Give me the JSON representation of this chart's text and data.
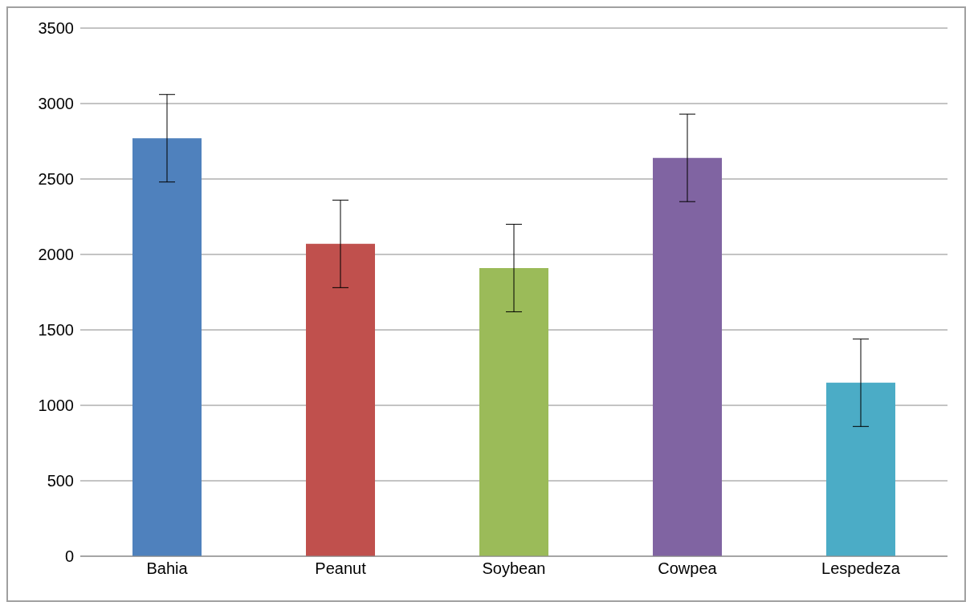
{
  "chart_data": {
    "type": "bar",
    "categories": [
      "Bahia",
      "Peanut",
      "Soybean",
      "Cowpea",
      "Lespedeza"
    ],
    "values": [
      2770,
      2070,
      1910,
      2640,
      1150
    ],
    "errors": [
      290,
      290,
      290,
      290,
      290
    ],
    "colors": [
      "#4f81bd",
      "#c0504d",
      "#9bbb59",
      "#8064a2",
      "#4bacc6"
    ],
    "ylim": [
      0,
      3500
    ],
    "yticks": [
      0,
      500,
      1000,
      1500,
      2000,
      2500,
      3000,
      3500
    ],
    "grid": "y",
    "legend": false
  }
}
